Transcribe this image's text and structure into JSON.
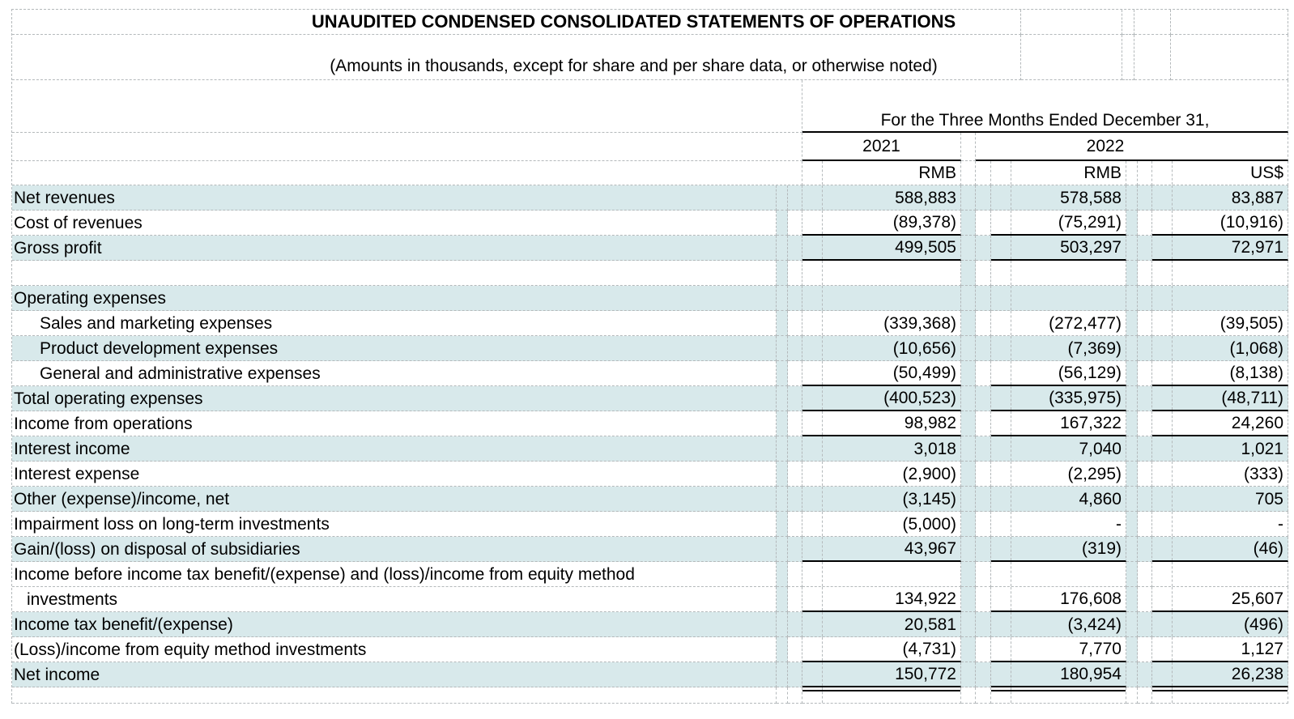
{
  "header": {
    "title": "UNAUDITED CONDENSED CONSOLIDATED STATEMENTS OF OPERATIONS",
    "subtitle": "(Amounts in thousands, except for share and per share data, or otherwise noted)",
    "period": "For the Three Months Ended December 31,",
    "year_2021": "2021",
    "year_2022": "2022",
    "unit_2021": "RMB",
    "unit_2022_rmb": "RMB",
    "unit_2022_usd": "US$"
  },
  "colors": {
    "row_band": "#d8e9eb",
    "grid_line": "#b4b9bb",
    "rule_line": "#000000"
  },
  "rows": [
    {
      "label": "Net revenues",
      "indent": 0,
      "band": true,
      "v2021": "588,883",
      "v2022_rmb": "578,588",
      "v2022_usd": "83,887",
      "rule": "none"
    },
    {
      "label": "Cost of revenues",
      "indent": 0,
      "band": false,
      "v2021": "(89,378)",
      "v2022_rmb": "(75,291)",
      "v2022_usd": "(10,916)",
      "rule": "single"
    },
    {
      "label": "Gross profit",
      "indent": 0,
      "band": true,
      "v2021": "499,505",
      "v2022_rmb": "503,297",
      "v2022_usd": "72,971",
      "rule": "single"
    },
    {
      "label": "",
      "indent": 0,
      "band": false,
      "v2021": "",
      "v2022_rmb": "",
      "v2022_usd": "",
      "rule": "none"
    },
    {
      "label": "Operating expenses",
      "indent": 0,
      "band": true,
      "v2021": "",
      "v2022_rmb": "",
      "v2022_usd": "",
      "rule": "none"
    },
    {
      "label": "Sales and marketing expenses",
      "indent": 1,
      "band": false,
      "v2021": "(339,368)",
      "v2022_rmb": "(272,477)",
      "v2022_usd": "(39,505)",
      "rule": "none"
    },
    {
      "label": "Product development expenses",
      "indent": 1,
      "band": true,
      "v2021": "(10,656)",
      "v2022_rmb": "(7,369)",
      "v2022_usd": "(1,068)",
      "rule": "none"
    },
    {
      "label": "General and administrative expenses",
      "indent": 1,
      "band": false,
      "v2021": "(50,499)",
      "v2022_rmb": "(56,129)",
      "v2022_usd": "(8,138)",
      "rule": "single"
    },
    {
      "label": "Total operating expenses",
      "indent": 0,
      "band": true,
      "v2021": "(400,523)",
      "v2022_rmb": "(335,975)",
      "v2022_usd": "(48,711)",
      "rule": "single"
    },
    {
      "label": "Income from operations",
      "indent": 0,
      "band": false,
      "v2021": "98,982",
      "v2022_rmb": "167,322",
      "v2022_usd": "24,260",
      "rule": "single"
    },
    {
      "label": "Interest income",
      "indent": 0,
      "band": true,
      "v2021": "3,018",
      "v2022_rmb": "7,040",
      "v2022_usd": "1,021",
      "rule": "none"
    },
    {
      "label": "Interest expense",
      "indent": 0,
      "band": false,
      "v2021": "(2,900)",
      "v2022_rmb": "(2,295)",
      "v2022_usd": "(333)",
      "rule": "none"
    },
    {
      "label": "Other (expense)/income, net",
      "indent": 0,
      "band": true,
      "v2021": "(3,145)",
      "v2022_rmb": "4,860",
      "v2022_usd": "705",
      "rule": "none"
    },
    {
      "label": "Impairment loss on long-term investments",
      "indent": 0,
      "band": false,
      "v2021": "(5,000)",
      "v2022_rmb": "-",
      "v2022_usd": "-",
      "rule": "none"
    },
    {
      "label": "Gain/(loss) on disposal of subsidiaries",
      "indent": 0,
      "band": true,
      "v2021": "43,967",
      "v2022_rmb": "(319)",
      "v2022_usd": "(46)",
      "rule": "single"
    },
    {
      "label": "Income before income tax benefit/(expense) and (loss)/income from equity method",
      "indent": 0,
      "band": false,
      "v2021": "",
      "v2022_rmb": "",
      "v2022_usd": "",
      "rule": "none"
    },
    {
      "label": "investments",
      "indent": 2,
      "band": false,
      "v2021": "134,922",
      "v2022_rmb": "176,608",
      "v2022_usd": "25,607",
      "rule": "single"
    },
    {
      "label": "Income tax benefit/(expense)",
      "indent": 0,
      "band": true,
      "v2021": "20,581",
      "v2022_rmb": "(3,424)",
      "v2022_usd": "(496)",
      "rule": "none"
    },
    {
      "label": "(Loss)/income from equity method investments",
      "indent": 0,
      "band": false,
      "v2021": "(4,731)",
      "v2022_rmb": "7,770",
      "v2022_usd": "1,127",
      "rule": "single"
    },
    {
      "label": "Net income",
      "indent": 0,
      "band": true,
      "v2021": "150,772",
      "v2022_rmb": "180,954",
      "v2022_usd": "26,238",
      "rule": "double"
    }
  ]
}
